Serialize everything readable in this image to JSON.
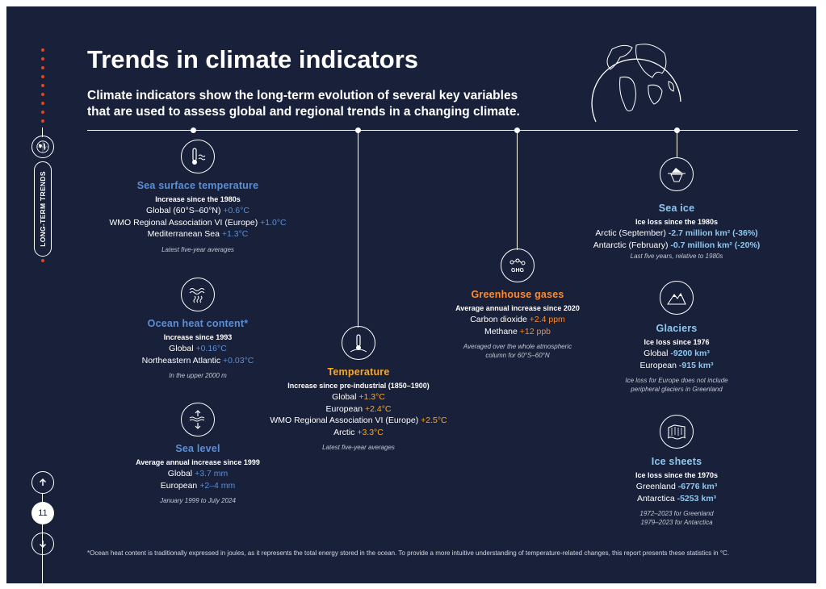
{
  "header": {
    "title": "Trends in climate indicators",
    "subtitle_line1": "Climate indicators show the long-term evolution of several key variables",
    "subtitle_line2": "that are used to assess global and regional trends in a changing climate."
  },
  "side_nav": {
    "section_label": "LONG-TERM TRENDS",
    "page_number": "11",
    "up_icon": "arrow-up-icon",
    "down_icon": "arrow-down-icon"
  },
  "indicators": {
    "sst": {
      "title": "Sea surface temperature",
      "head": "Increase since the 1980s",
      "rows": [
        {
          "label": "Global (60°S–60°N) ",
          "value": "+0.6°C"
        },
        {
          "label": "WMO Regional Association VI (Europe) ",
          "value": "+1.0°C"
        },
        {
          "label": "Mediterranean Sea ",
          "value": "+1.3°C"
        }
      ],
      "note": "Latest five-year averages"
    },
    "ohc": {
      "title": "Ocean heat content*",
      "head": "Increase since 1993",
      "rows": [
        {
          "label": "Global ",
          "value": "+0.16°C"
        },
        {
          "label": "Northeastern Atlantic ",
          "value": "+0.03°C"
        }
      ],
      "note": "In the upper 2000 m"
    },
    "sea_level": {
      "title": "Sea level",
      "head": "Average annual increase since 1999",
      "rows": [
        {
          "label": "Global ",
          "value": "+3.7 mm"
        },
        {
          "label": "European ",
          "value": "+2–4 mm"
        }
      ],
      "note": "January 1999 to July 2024"
    },
    "temperature": {
      "title": "Temperature",
      "head": "Increase since pre-industrial (1850–1900)",
      "rows": [
        {
          "label": "Global ",
          "value": "+1.3°C"
        },
        {
          "label": "European ",
          "value": "+2.4°C"
        },
        {
          "label": "WMO Regional Association VI (Europe) ",
          "value": "+2.5°C"
        },
        {
          "label": "Arctic ",
          "value": "+3.3°C"
        }
      ],
      "note": "Latest five-year averages"
    },
    "ghg": {
      "title": "Greenhouse gases",
      "icon_label": "GHG",
      "head": "Average annual increase since 2020",
      "rows": [
        {
          "label": "Carbon dioxide ",
          "value": "+2.4 ppm"
        },
        {
          "label": "Methane ",
          "value": "+12 ppb"
        }
      ],
      "note_line1": "Averaged over the whole atmospheric",
      "note_line2": "column for 60°S–60°N"
    },
    "sea_ice": {
      "title": "Sea ice",
      "head": "Ice loss since the 1980s",
      "rows": [
        {
          "label": "Arctic (September) ",
          "value": "-2.7 million km² (-36%)"
        },
        {
          "label": "Antarctic (February) ",
          "value": "-0.7 million km² (-20%)"
        }
      ],
      "note": "Last five years, relative to 1980s"
    },
    "glaciers": {
      "title": "Glaciers",
      "head": "Ice loss since 1976",
      "rows": [
        {
          "label": "Global ",
          "value": "-9200 km³"
        },
        {
          "label": "European ",
          "value": "-915 km³"
        }
      ],
      "note_line1": "Ice loss for Europe does not include",
      "note_line2": "peripheral glaciers in Greenland"
    },
    "ice_sheets": {
      "title": "Ice sheets",
      "head": "Ice loss since the 1970s",
      "rows": [
        {
          "label": "Greenland ",
          "value": "-6776 km³"
        },
        {
          "label": "Antarctica ",
          "value": "-5253 km³"
        }
      ],
      "note_line1": "1972–2023 for Greenland",
      "note_line2": "1979–2023 for Antarctica"
    }
  },
  "footnote": "*Ocean heat content is traditionally expressed in joules, as it represents the total energy stored in the ocean. To provide a more intuitive understanding of temperature-related changes, this report presents these statistics in °C.",
  "colors": {
    "background": "#18203a",
    "ocean_blue": "#5b8fd6",
    "atmosphere_yellow": "#f7a82b",
    "ghg_orange": "#ff8a2a",
    "cryosphere_sky": "#8ec8f0",
    "accent_dots": "#e0471f"
  }
}
